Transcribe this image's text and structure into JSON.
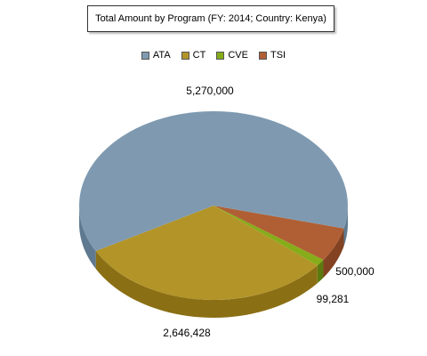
{
  "chart_data": {
    "type": "pie",
    "title": "Total Amount by Program (FY: 2014; Country: Kenya)",
    "legend_position": "top",
    "three_d": true,
    "slices": [
      {
        "name": "ATA",
        "value": 5270000,
        "label": "5,270,000",
        "color": "#7f9ab0",
        "side_color": "#5f7a90"
      },
      {
        "name": "CT",
        "value": 2646428,
        "label": "2,646,428",
        "color": "#b39428",
        "side_color": "#8a6f14"
      },
      {
        "name": "CVE",
        "value": 99281,
        "label": "99,281",
        "color": "#86ac1a",
        "side_color": "#5c7a10"
      },
      {
        "name": "TSI",
        "value": 500000,
        "label": "500,000",
        "color": "#b05f34",
        "side_color": "#834221"
      }
    ]
  }
}
